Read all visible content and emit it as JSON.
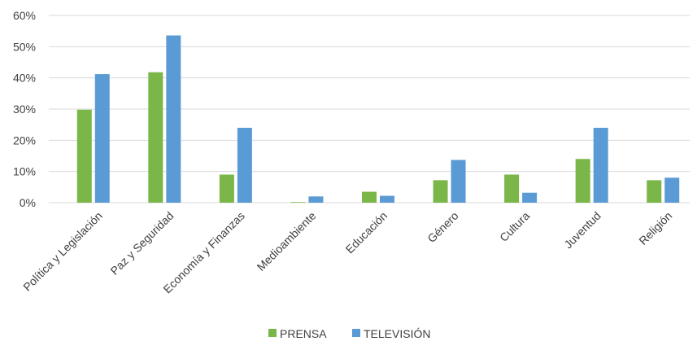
{
  "chart_data": {
    "type": "bar",
    "categories": [
      "Política y Legislación",
      "Paz y Seguridad",
      "Economía y Finanzas",
      "Medioambiente",
      "Educación",
      "Género",
      "Cultura",
      "Juventud",
      "Religión"
    ],
    "series": [
      {
        "name": "PRENSA",
        "color": "#7ab648",
        "values": [
          29.8,
          41.8,
          9.0,
          0.2,
          3.5,
          7.2,
          9.0,
          14.0,
          7.2
        ]
      },
      {
        "name": "TELEVISIÓN",
        "color": "#5b9bd5",
        "values": [
          41.2,
          53.6,
          24.0,
          2.0,
          2.2,
          13.7,
          3.2,
          24.0,
          8.0
        ]
      }
    ],
    "yticks": [
      "0%",
      "10%",
      "20%",
      "30%",
      "40%",
      "50%",
      "60%"
    ],
    "ytick_values": [
      0,
      10,
      20,
      30,
      40,
      50,
      60
    ],
    "ylim": [
      0,
      60
    ],
    "grid": true,
    "legend": "bottom-center"
  }
}
